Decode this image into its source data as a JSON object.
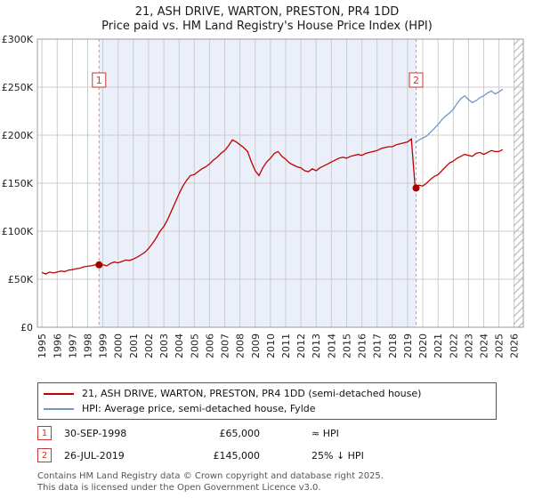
{
  "header": {
    "title": "21, ASH DRIVE, WARTON, PRESTON, PR4 1DD",
    "subtitle": "Price paid vs. HM Land Registry's House Price Index (HPI)"
  },
  "chart_data": {
    "type": "line",
    "xlim": [
      1994.7,
      2026.6
    ],
    "ylim": [
      0,
      300000
    ],
    "x_ticks": [
      1995,
      1996,
      1997,
      1998,
      1999,
      2000,
      2001,
      2002,
      2003,
      2004,
      2005,
      2006,
      2007,
      2008,
      2009,
      2010,
      2011,
      2012,
      2013,
      2014,
      2015,
      2016,
      2017,
      2018,
      2019,
      2020,
      2021,
      2022,
      2023,
      2024,
      2025,
      2026
    ],
    "y_ticks": [
      {
        "v": 0,
        "label": "£0"
      },
      {
        "v": 50000,
        "label": "£50K"
      },
      {
        "v": 100000,
        "label": "£100K"
      },
      {
        "v": 150000,
        "label": "£150K"
      },
      {
        "v": 200000,
        "label": "£200K"
      },
      {
        "v": 250000,
        "label": "£250K"
      },
      {
        "v": 300000,
        "label": "£300K"
      }
    ],
    "series": [
      {
        "name": "21, ASH DRIVE, WARTON, PRESTON, PR4 1DD (semi-detached house)",
        "data_name": "price-paid-line",
        "color": "#c00000",
        "x_start": 1995.0,
        "x_step": 0.25,
        "values": [
          57000,
          55500,
          57500,
          56500,
          57500,
          58500,
          58000,
          59500,
          60000,
          61000,
          61500,
          63000,
          63500,
          64000,
          65000,
          66000,
          65000,
          64000,
          66500,
          68000,
          67000,
          68500,
          70000,
          69500,
          71000,
          73000,
          75500,
          78000,
          82000,
          87000,
          93000,
          100000,
          105000,
          112000,
          121000,
          130000,
          139000,
          147000,
          153000,
          158000,
          159000,
          162000,
          165000,
          167000,
          170000,
          174000,
          177000,
          181000,
          184000,
          189000,
          195000,
          193000,
          190000,
          187000,
          183000,
          172000,
          163000,
          158000,
          166000,
          172000,
          176000,
          181000,
          183000,
          178000,
          175000,
          171000,
          169000,
          167000,
          166000,
          163000,
          162000,
          165000,
          163000,
          166000,
          168000,
          170000,
          172000,
          174000,
          176000,
          177000,
          176000,
          178000,
          179000,
          180000,
          179000,
          181000,
          182000,
          183000,
          184000,
          186000,
          187000,
          188000,
          188000,
          190000,
          191000,
          192000,
          193000,
          196000,
          145000,
          148000,
          147000,
          150000,
          154000,
          157000,
          159000,
          163000,
          167000,
          171000,
          173000,
          176000,
          178000,
          180000,
          179000,
          178000,
          181000,
          182000,
          180000,
          182000,
          184000,
          183000,
          183000,
          185000
        ]
      },
      {
        "name": "HPI: Average price, semi-detached house, Fylde",
        "data_name": "hpi-line",
        "color": "#6f97c5",
        "x_start": 2019.5,
        "x_step": 0.25,
        "values": [
          192000,
          195000,
          197000,
          199000,
          203000,
          207000,
          211000,
          216000,
          220000,
          223000,
          227000,
          233000,
          238000,
          241000,
          237000,
          234000,
          236000,
          239000,
          241000,
          244000,
          246000,
          243000,
          245000,
          248000
        ]
      }
    ],
    "sales": [
      {
        "n": 1,
        "x": 1998.75,
        "y": 65000,
        "date": "30-SEP-1998",
        "price": "£65,000",
        "vs_hpi": "≈ HPI"
      },
      {
        "n": 2,
        "x": 2019.56,
        "y": 145000,
        "date": "26-JUL-2019",
        "price": "£145,000",
        "vs_hpi": "25% ↓ HPI"
      }
    ],
    "shaded_region": [
      1998.75,
      2019.56
    ],
    "hatch_region": [
      2025.95,
      2026.6
    ],
    "colors": {
      "grid": "#cccccc",
      "border": "#999999",
      "shade": "#eaeffa",
      "dashed": "#ee8888",
      "marker": "#a00000",
      "hatch": "#b8b8b8",
      "box_border": "#cc3333",
      "tick_text": "#222222"
    }
  },
  "footer": {
    "line1": "Contains HM Land Registry data © Crown copyright and database right 2025.",
    "line2": "This data is licensed under the Open Government Licence v3.0."
  }
}
